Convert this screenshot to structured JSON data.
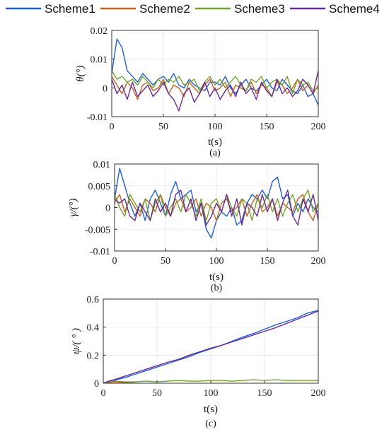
{
  "legend": {
    "entries": [
      {
        "name": "Scheme1",
        "color": "#1f5fd6"
      },
      {
        "name": "Scheme2",
        "color": "#c8611e"
      },
      {
        "name": "Scheme3",
        "color": "#73a32a"
      },
      {
        "name": "Scheme4",
        "color": "#6b2a96"
      }
    ],
    "placement": "top"
  },
  "chart_data": [
    {
      "type": "line",
      "caption": "(a)",
      "xlabel": "t(s)",
      "ylabel": "θ(°)",
      "xlim": [
        0,
        200
      ],
      "ylim": [
        -0.01,
        0.02
      ],
      "xticks": [
        0,
        50,
        100,
        150,
        200
      ],
      "yticks": [
        -0.01,
        0,
        0.01,
        0.02
      ],
      "ytick_labels": [
        "-0.01",
        "0",
        "0.01",
        "0.02"
      ],
      "grid": true,
      "x": [
        0,
        5,
        10,
        15,
        20,
        25,
        30,
        35,
        40,
        45,
        50,
        55,
        60,
        65,
        70,
        75,
        80,
        85,
        90,
        95,
        100,
        105,
        110,
        115,
        120,
        125,
        130,
        135,
        140,
        145,
        150,
        155,
        160,
        165,
        170,
        175,
        180,
        185,
        190,
        195,
        200
      ],
      "series": [
        {
          "name": "Scheme1",
          "values": [
            0.005,
            0.017,
            0.014,
            0.006,
            0.004,
            0.002,
            0.005,
            0.003,
            0.001,
            0.003,
            0.004,
            0.002,
            0.005,
            0.001,
            0.0,
            0.003,
            0.001,
            0.0,
            -0.001,
            0.002,
            0.002,
            0.001,
            0.004,
            0.0,
            -0.002,
            0.001,
            0.003,
            0.0,
            -0.001,
            0.001,
            0.003,
            0.0,
            -0.001,
            0.003,
            0.001,
            -0.001,
            -0.002,
            0.001,
            -0.003,
            -0.002,
            -0.006
          ]
        },
        {
          "name": "Scheme2",
          "values": [
            0.004,
            0.001,
            -0.002,
            0.002,
            0.0,
            -0.004,
            0.001,
            0.002,
            -0.001,
            0.0,
            0.003,
            -0.002,
            0.001,
            0.0,
            -0.003,
            0.002,
            0.0,
            -0.002,
            0.001,
            0.003,
            -0.001,
            0.0,
            0.002,
            -0.003,
            0.001,
            0.0,
            -0.001,
            0.002,
            -0.002,
            0.001,
            0.0,
            -0.003,
            0.002,
            0.001,
            -0.002,
            0.0,
            0.003,
            -0.001,
            0.001,
            -0.002,
            0.001
          ]
        },
        {
          "name": "Scheme3",
          "values": [
            0.006,
            0.003,
            0.004,
            0.002,
            0.003,
            0.001,
            0.004,
            0.002,
            0.0,
            0.003,
            0.001,
            0.003,
            0.002,
            0.004,
            0.001,
            0.002,
            0.003,
            -0.001,
            0.002,
            0.004,
            0.001,
            0.003,
            0.0,
            0.002,
            0.004,
            0.001,
            -0.001,
            0.003,
            0.002,
            0.004,
            0.0,
            0.002,
            0.003,
            0.001,
            0.004,
            -0.002,
            0.003,
            0.001,
            0.002,
            -0.001,
            0.0
          ]
        },
        {
          "name": "Scheme4",
          "values": [
            0.003,
            -0.002,
            0.001,
            -0.004,
            0.002,
            -0.003,
            -0.001,
            0.001,
            -0.003,
            -0.001,
            0.002,
            -0.002,
            -0.004,
            -0.008,
            -0.002,
            0.0,
            -0.005,
            -0.002,
            0.002,
            -0.003,
            0.0,
            -0.004,
            -0.001,
            0.001,
            -0.003,
            0.002,
            -0.002,
            0.0,
            -0.004,
            0.002,
            -0.001,
            -0.003,
            0.003,
            -0.002,
            0.0,
            -0.003,
            -0.001,
            0.003,
            0.001,
            -0.002,
            0.006
          ]
        }
      ]
    },
    {
      "type": "line",
      "caption": "(b)",
      "xlabel": "t(s)",
      "ylabel": "γ/(°)",
      "xlim": [
        0,
        200
      ],
      "ylim": [
        -0.01,
        0.01
      ],
      "xticks": [
        0,
        50,
        100,
        150,
        200
      ],
      "yticks": [
        -0.01,
        -0.005,
        0,
        0.005,
        0.01
      ],
      "ytick_labels": [
        "-0.01",
        "-0.005",
        "0",
        "0.005",
        "0.01"
      ],
      "grid": true,
      "x": [
        0,
        5,
        10,
        15,
        20,
        25,
        30,
        35,
        40,
        45,
        50,
        55,
        60,
        65,
        70,
        75,
        80,
        85,
        90,
        95,
        100,
        105,
        110,
        115,
        120,
        125,
        130,
        135,
        140,
        145,
        150,
        155,
        160,
        165,
        170,
        175,
        180,
        185,
        190,
        195,
        200
      ],
      "series": [
        {
          "name": "Scheme1",
          "values": [
            0.002,
            0.009,
            0.005,
            0.001,
            -0.002,
            0.001,
            -0.003,
            0.002,
            0.004,
            0.001,
            -0.002,
            0.003,
            0.006,
            0.002,
            0.003,
            0.004,
            -0.001,
            0.001,
            -0.005,
            -0.007,
            -0.003,
            -0.001,
            -0.002,
            0.0,
            -0.004,
            -0.003,
            0.001,
            0.003,
            0.002,
            0.004,
            0.002,
            0.006,
            0.007,
            0.002,
            0.003,
            -0.002,
            0.001,
            -0.001,
            0.002,
            0.0,
            -0.001
          ]
        },
        {
          "name": "Scheme2",
          "values": [
            0.001,
            0.003,
            -0.001,
            0.002,
            0.0,
            -0.002,
            0.002,
            0.001,
            -0.001,
            0.003,
            0.0,
            -0.002,
            0.001,
            0.002,
            -0.001,
            0.0,
            0.002,
            -0.002,
            0.001,
            0.0,
            -0.003,
            0.001,
            0.002,
            -0.001,
            0.0,
            0.002,
            -0.002,
            0.001,
            0.003,
            -0.001,
            0.0,
            0.002,
            -0.002,
            0.001,
            0.0,
            -0.001,
            0.002,
            0.003,
            -0.001,
            -0.003,
            0.001
          ]
        },
        {
          "name": "Scheme3",
          "values": [
            0.003,
            0.0,
            -0.002,
            0.003,
            0.001,
            -0.001,
            0.002,
            -0.003,
            0.001,
            0.003,
            -0.002,
            0.0,
            0.002,
            -0.001,
            0.003,
            0.001,
            -0.002,
            0.002,
            -0.003,
            0.001,
            0.002,
            -0.001,
            0.003,
            0.0,
            -0.002,
            0.002,
            0.001,
            -0.003,
            0.002,
            0.0,
            0.003,
            -0.001,
            0.002,
            -0.002,
            0.001,
            0.003,
            -0.001,
            0.002,
            0.004,
            -0.001,
            0.001
          ]
        },
        {
          "name": "Scheme4",
          "values": [
            0.002,
            0.001,
            0.002,
            -0.002,
            -0.003,
            0.001,
            -0.001,
            -0.003,
            0.002,
            -0.001,
            0.001,
            -0.002,
            0.003,
            0.004,
            -0.001,
            0.002,
            -0.003,
            0.001,
            -0.004,
            -0.002,
            0.001,
            -0.001,
            0.003,
            -0.002,
            0.002,
            -0.004,
            0.001,
            0.0,
            -0.002,
            0.003,
            -0.001,
            0.002,
            -0.003,
            0.001,
            0.004,
            -0.002,
            -0.004,
            0.002,
            -0.001,
            0.003,
            -0.003
          ]
        }
      ]
    },
    {
      "type": "line",
      "caption": "(c)",
      "xlabel": "t(s)",
      "ylabel": "ψ/( ° )",
      "xlim": [
        0,
        200
      ],
      "ylim": [
        0,
        0.6
      ],
      "xticks": [
        0,
        50,
        100,
        150,
        200
      ],
      "yticks": [
        0,
        0.2,
        0.4,
        0.6
      ],
      "ytick_labels": [
        "0",
        "0.2",
        "0.4",
        "0.6"
      ],
      "grid": true,
      "x": [
        0,
        5,
        10,
        20,
        30,
        40,
        50,
        60,
        70,
        80,
        90,
        100,
        110,
        120,
        130,
        140,
        150,
        160,
        170,
        180,
        190,
        200
      ],
      "series": [
        {
          "name": "Scheme1",
          "values": [
            0.0,
            0.01,
            0.02,
            0.04,
            0.065,
            0.09,
            0.115,
            0.14,
            0.165,
            0.19,
            0.22,
            0.245,
            0.27,
            0.3,
            0.33,
            0.355,
            0.385,
            0.415,
            0.44,
            0.465,
            0.5,
            0.52
          ]
        },
        {
          "name": "Scheme2",
          "values": [
            0.0,
            0.005,
            0.01,
            0.005,
            0.0,
            -0.005,
            -0.005,
            -0.01,
            -0.01,
            -0.005,
            -0.01,
            -0.01,
            -0.005,
            -0.01,
            -0.005,
            -0.005,
            -0.01,
            -0.005,
            -0.01,
            -0.005,
            -0.01,
            -0.01
          ]
        },
        {
          "name": "Scheme3",
          "values": [
            0.0,
            0.01,
            0.015,
            0.01,
            0.01,
            0.015,
            0.01,
            0.015,
            0.02,
            0.015,
            0.015,
            0.02,
            0.02,
            0.015,
            0.02,
            0.025,
            0.02,
            0.025,
            0.02,
            0.02,
            0.02,
            0.02
          ]
        },
        {
          "name": "Scheme4",
          "values": [
            0.0,
            0.015,
            0.025,
            0.05,
            0.075,
            0.1,
            0.125,
            0.15,
            0.17,
            0.2,
            0.225,
            0.25,
            0.27,
            0.295,
            0.32,
            0.345,
            0.37,
            0.395,
            0.425,
            0.455,
            0.485,
            0.515
          ]
        }
      ]
    }
  ]
}
